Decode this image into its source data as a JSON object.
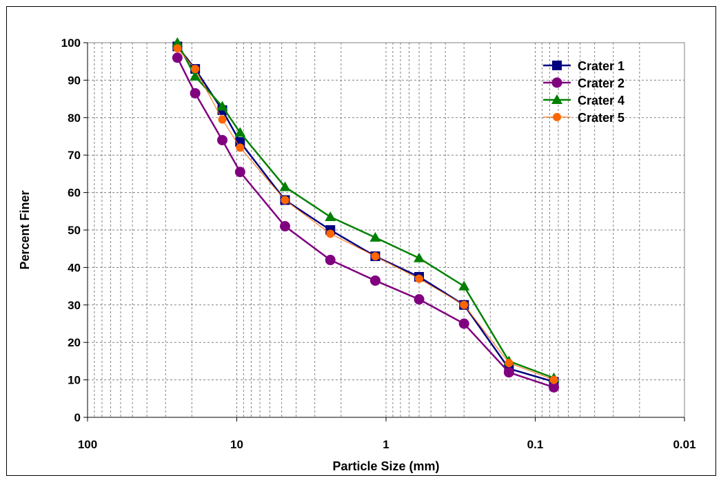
{
  "chart_data": {
    "type": "line",
    "title": "",
    "xlabel": "Particle Size (mm)",
    "ylabel": "Percent Finer",
    "x_scale": "log",
    "x_reversed": true,
    "xlim": [
      100,
      0.01
    ],
    "ylim": [
      0,
      100
    ],
    "x_ticks": [
      "100",
      "10",
      "1",
      "0.1",
      "0.01"
    ],
    "y_ticks": [
      "0",
      "10",
      "20",
      "30",
      "40",
      "50",
      "60",
      "70",
      "80",
      "90",
      "100"
    ],
    "grid": true,
    "legend_position": "top-right",
    "x": [
      25,
      19,
      12.5,
      9.5,
      4.75,
      2.36,
      1.18,
      0.6,
      0.3,
      0.15,
      0.075
    ],
    "series": [
      {
        "name": "Crater 1",
        "color": "#000080",
        "marker": "square",
        "values": [
          99,
          93,
          82,
          73.5,
          58,
          50,
          43,
          37.5,
          30,
          13,
          9.5
        ]
      },
      {
        "name": "Crater 2",
        "color": "#800080",
        "marker": "circle",
        "values": [
          96,
          86.5,
          74,
          65.5,
          51,
          42,
          36.5,
          31.5,
          25,
          12,
          8
        ]
      },
      {
        "name": "Crater 4",
        "color": "#008000",
        "marker": "triangle",
        "values": [
          100,
          91,
          83,
          76,
          61.5,
          53.5,
          48,
          42.5,
          35,
          15,
          10.5
        ]
      },
      {
        "name": "Crater 5",
        "color": "#FF6600",
        "marker": "small-circle",
        "values": [
          98.5,
          93,
          79.5,
          72,
          58,
          49,
          43,
          37,
          30,
          14.5,
          10
        ]
      }
    ]
  }
}
